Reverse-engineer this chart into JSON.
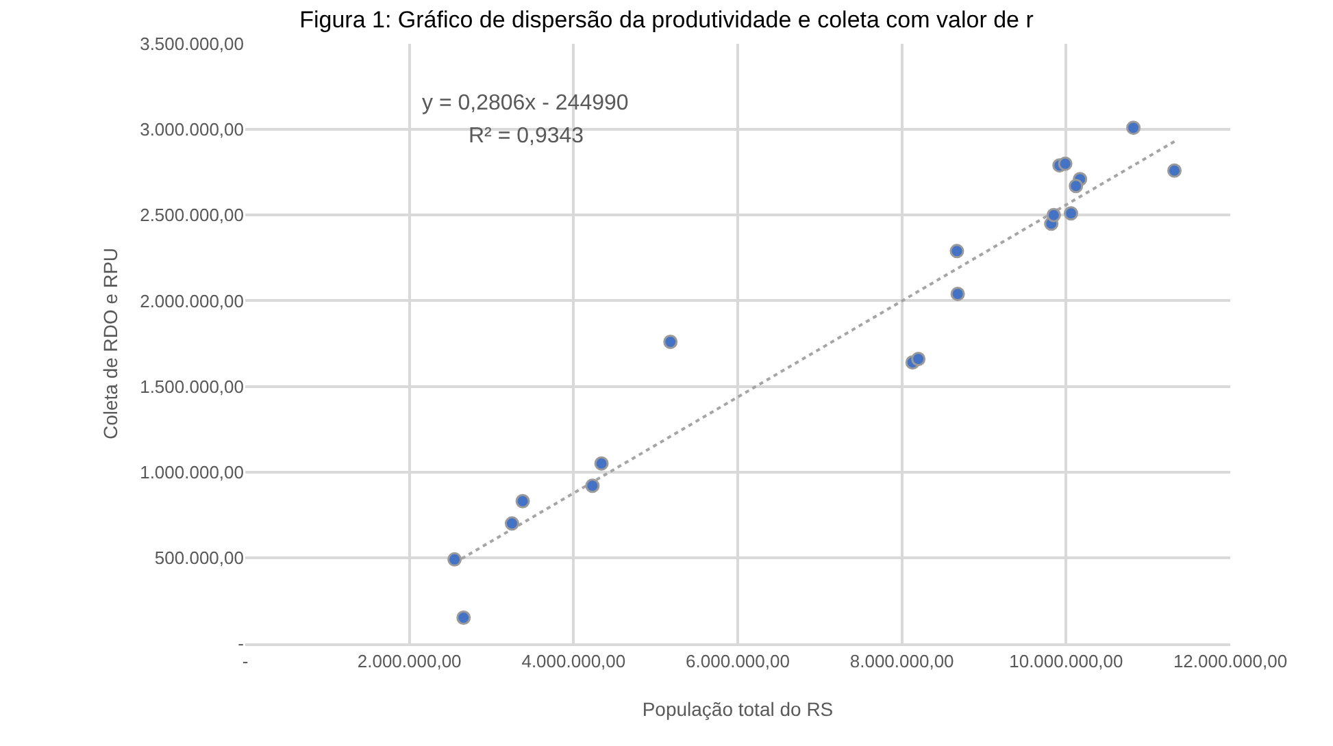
{
  "chart_data": {
    "type": "scatter",
    "title": "Figura 1: Gráfico de dispersão da produtividade e coleta com valor de r",
    "xlabel": "População total do RS",
    "ylabel": "Coleta de RDO e RPU",
    "annotations": [
      "y = 0,2806x - 244990",
      "R² = 0,9343"
    ],
    "series": [
      {
        "color": "#4472c4",
        "x": [
          2550000,
          2660000,
          3250000,
          3380000,
          4230000,
          4340000,
          5180000,
          8130000,
          8200000,
          8670000,
          8680000,
          9820000,
          9850000,
          10060000,
          9920000,
          9990000,
          10170000,
          10120000,
          10820000,
          11320000
        ],
        "values": [
          490000,
          150000,
          700000,
          830000,
          920000,
          1050000,
          1760000,
          1640000,
          1660000,
          2290000,
          2040000,
          2450000,
          2500000,
          2510000,
          2790000,
          2800000,
          2710000,
          2670000,
          3010000,
          2760000
        ]
      },
      {
        "type": "line",
        "color": "#a5a5a5",
        "line_style": "dotted",
        "marker": "none",
        "x": [
          2550000,
          11320000
        ],
        "values": [
          470000,
          2930000
        ]
      }
    ],
    "xlim": [
      0,
      12000000
    ],
    "ylim": [
      0,
      3500000
    ],
    "xticks": [
      {
        "value": 0,
        "label": "-"
      },
      {
        "value": 2000000,
        "label": "2.000.000,00"
      },
      {
        "value": 4000000,
        "label": "4.000.000,00"
      },
      {
        "value": 6000000,
        "label": "6.000.000,00"
      },
      {
        "value": 8000000,
        "label": "8.000.000,00"
      },
      {
        "value": 10000000,
        "label": "10.000.000,00"
      },
      {
        "value": 12000000,
        "label": "12.000.000,00"
      }
    ],
    "yticks": [
      {
        "value": 0,
        "label": "-"
      },
      {
        "value": 500000,
        "label": "500.000,00"
      },
      {
        "value": 1000000,
        "label": "1.000.000,00"
      },
      {
        "value": 1500000,
        "label": "1.500.000,00"
      },
      {
        "value": 2000000,
        "label": "2.000.000,00"
      },
      {
        "value": 2500000,
        "label": "2.500.000,00"
      },
      {
        "value": 3000000,
        "label": "3.000.000,00"
      },
      {
        "value": 3500000,
        "label": "3.500.000,00"
      }
    ],
    "grid": true,
    "marker": "circle"
  }
}
